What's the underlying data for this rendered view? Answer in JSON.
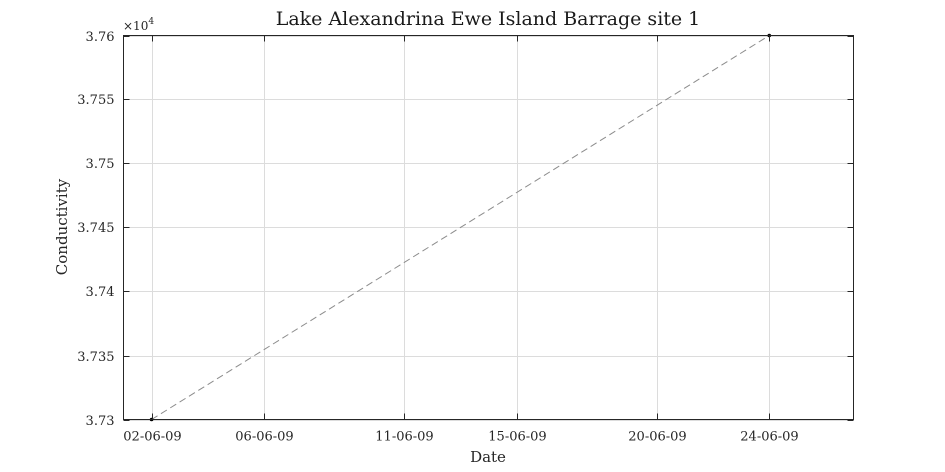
{
  "chart_data": {
    "type": "line",
    "title": "Lake Alexandrina Ewe Island Barrage site 1",
    "xlabel": "Date",
    "ylabel": "Conductivity",
    "y_exponent_label": "×10",
    "y_exponent_power": "4",
    "x_axis_type": "date",
    "xlim": [
      "2009-06-01",
      "2009-06-27"
    ],
    "ylim": [
      3.73,
      3.76
    ],
    "x_ticks": [
      {
        "value": "2009-06-02",
        "label": "02-06-09"
      },
      {
        "value": "2009-06-06",
        "label": "06-06-09"
      },
      {
        "value": "2009-06-11",
        "label": "11-06-09"
      },
      {
        "value": "2009-06-15",
        "label": "15-06-09"
      },
      {
        "value": "2009-06-20",
        "label": "20-06-09"
      },
      {
        "value": "2009-06-24",
        "label": "24-06-09"
      }
    ],
    "y_ticks": [
      {
        "value": 3.73,
        "label": "3.73"
      },
      {
        "value": 3.735,
        "label": "3.735"
      },
      {
        "value": 3.74,
        "label": "3.74"
      },
      {
        "value": 3.745,
        "label": "3.745"
      },
      {
        "value": 3.75,
        "label": "3.75"
      },
      {
        "value": 3.755,
        "label": "3.755"
      },
      {
        "value": 3.76,
        "label": "3.76"
      }
    ],
    "grid": true,
    "series": [
      {
        "color": "#000000",
        "line_color": "#8c8c8c",
        "line_style": "dashed",
        "points": [
          {
            "x": "2009-06-02",
            "y": 3.73
          },
          {
            "x": "2009-06-24",
            "y": 3.76
          }
        ]
      }
    ]
  }
}
